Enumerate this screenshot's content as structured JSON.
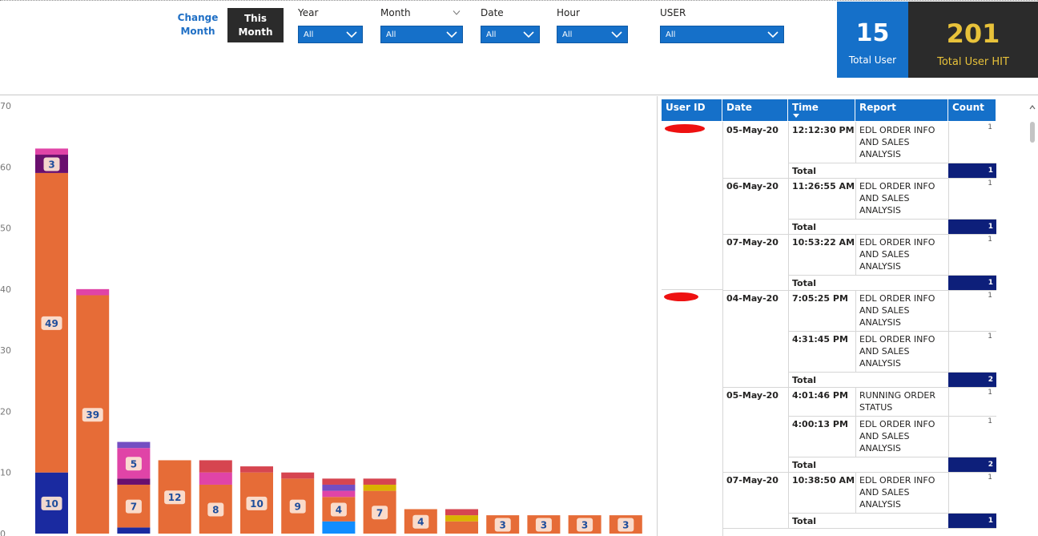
{
  "header": {
    "change_month": "Change Month",
    "this_month": "This Month",
    "filters": [
      {
        "label": "Year",
        "value": "All"
      },
      {
        "label": "Month",
        "value": "All"
      },
      {
        "label": "Date",
        "value": "All"
      },
      {
        "label": "Hour",
        "value": "All"
      },
      {
        "label": "USER",
        "value": "All"
      }
    ]
  },
  "kpis": {
    "total_user": {
      "value": "15",
      "label": "Total User"
    },
    "total_hit": {
      "value": "201",
      "label": "Total User HIT"
    }
  },
  "colors": {
    "accent_blue": "#1570c9",
    "dark": "#2b2b2b",
    "gold": "#e8c23a",
    "total_navy": "#0d1f7a",
    "orange": "#e66c37",
    "navy": "#1a2aa0",
    "purple": "#6a0f6e",
    "pink": "#e044a7",
    "violet": "#744ec2",
    "red": "#d64550",
    "gold_seg": "#d9b300",
    "sky": "#118dff"
  },
  "chart_data": {
    "type": "bar",
    "stacked": true,
    "ylim": [
      0,
      70
    ],
    "yticks": [
      "0",
      "10",
      "20",
      "30",
      "40",
      "50",
      "60",
      "70"
    ],
    "grid": false,
    "bars": [
      {
        "segments": [
          {
            "value": 10,
            "color": "navy",
            "label": "10"
          },
          {
            "value": 49,
            "color": "orange",
            "label": "49"
          },
          {
            "value": 3,
            "color": "purple",
            "label": "3"
          },
          {
            "value": 1,
            "color": "pink"
          }
        ]
      },
      {
        "segments": [
          {
            "value": 39,
            "color": "orange",
            "label": "39"
          },
          {
            "value": 1,
            "color": "pink"
          }
        ]
      },
      {
        "segments": [
          {
            "value": 1,
            "color": "navy"
          },
          {
            "value": 7,
            "color": "orange",
            "label": "7"
          },
          {
            "value": 1,
            "color": "purple"
          },
          {
            "value": 5,
            "color": "pink",
            "label": "5"
          },
          {
            "value": 1,
            "color": "violet"
          }
        ]
      },
      {
        "segments": [
          {
            "value": 12,
            "color": "orange",
            "label": "12"
          }
        ]
      },
      {
        "segments": [
          {
            "value": 8,
            "color": "orange",
            "label": "8"
          },
          {
            "value": 2,
            "color": "pink"
          },
          {
            "value": 2,
            "color": "red"
          }
        ]
      },
      {
        "segments": [
          {
            "value": 10,
            "color": "orange",
            "label": "10"
          },
          {
            "value": 1,
            "color": "red"
          }
        ]
      },
      {
        "segments": [
          {
            "value": 9,
            "color": "orange",
            "label": "9"
          },
          {
            "value": 1,
            "color": "red"
          }
        ]
      },
      {
        "segments": [
          {
            "value": 2,
            "color": "sky"
          },
          {
            "value": 4,
            "color": "orange",
            "label": "4"
          },
          {
            "value": 1,
            "color": "pink"
          },
          {
            "value": 1,
            "color": "violet"
          },
          {
            "value": 1,
            "color": "red"
          }
        ]
      },
      {
        "segments": [
          {
            "value": 7,
            "color": "orange",
            "label": "7"
          },
          {
            "value": 1,
            "color": "gold_seg"
          },
          {
            "value": 1,
            "color": "red"
          }
        ]
      },
      {
        "segments": [
          {
            "value": 4,
            "color": "orange",
            "label": "4"
          }
        ]
      },
      {
        "segments": [
          {
            "value": 2,
            "color": "orange"
          },
          {
            "value": 1,
            "color": "gold_seg"
          },
          {
            "value": 1,
            "color": "red"
          }
        ]
      },
      {
        "segments": [
          {
            "value": 3,
            "color": "orange",
            "label": "3"
          }
        ]
      },
      {
        "segments": [
          {
            "value": 3,
            "color": "orange",
            "label": "3"
          }
        ]
      },
      {
        "segments": [
          {
            "value": 3,
            "color": "orange",
            "label": "3"
          }
        ]
      },
      {
        "segments": [
          {
            "value": 3,
            "color": "orange",
            "label": "3"
          }
        ]
      }
    ]
  },
  "table": {
    "columns": [
      "User ID",
      "Date",
      "Time",
      "Report",
      "Count"
    ],
    "total_label": "Total",
    "groups": [
      {
        "date": "05-May-20",
        "rows": [
          {
            "time": "12:12:30 PM",
            "report": [
              "EDL ORDER INFO",
              "AND SALES",
              "ANALYSIS"
            ],
            "count": "1"
          }
        ],
        "total": "1"
      },
      {
        "date": "06-May-20",
        "rows": [
          {
            "time": "11:26:55 AM",
            "report": [
              "EDL ORDER INFO",
              "AND SALES",
              "ANALYSIS"
            ],
            "count": "1"
          }
        ],
        "total": "1"
      },
      {
        "date": "07-May-20",
        "rows": [
          {
            "time": "10:53:22 AM",
            "report": [
              "EDL ORDER INFO",
              "AND SALES",
              "ANALYSIS"
            ],
            "count": "1"
          }
        ],
        "total": "1"
      },
      {
        "date": "04-May-20",
        "rows": [
          {
            "time": "7:05:25 PM",
            "report": [
              "EDL ORDER INFO",
              "AND SALES",
              "ANALYSIS"
            ],
            "count": "1"
          },
          {
            "time": "4:31:45 PM",
            "report": [
              "EDL ORDER INFO",
              "AND SALES",
              "ANALYSIS"
            ],
            "count": "1"
          }
        ],
        "total": "2"
      },
      {
        "date": "05-May-20",
        "rows": [
          {
            "time": "4:01:46 PM",
            "report": [
              "RUNNING ORDER",
              "STATUS"
            ],
            "count": "1"
          },
          {
            "time": "4:00:13 PM",
            "report": [
              "EDL ORDER INFO",
              "AND SALES",
              "ANALYSIS"
            ],
            "count": "1"
          }
        ],
        "total": "2"
      },
      {
        "date": "07-May-20",
        "rows": [
          {
            "time": "10:38:50 AM",
            "report": [
              "EDL ORDER INFO",
              "AND SALES",
              "ANALYSIS"
            ],
            "count": "1"
          }
        ],
        "total": "1"
      }
    ]
  }
}
